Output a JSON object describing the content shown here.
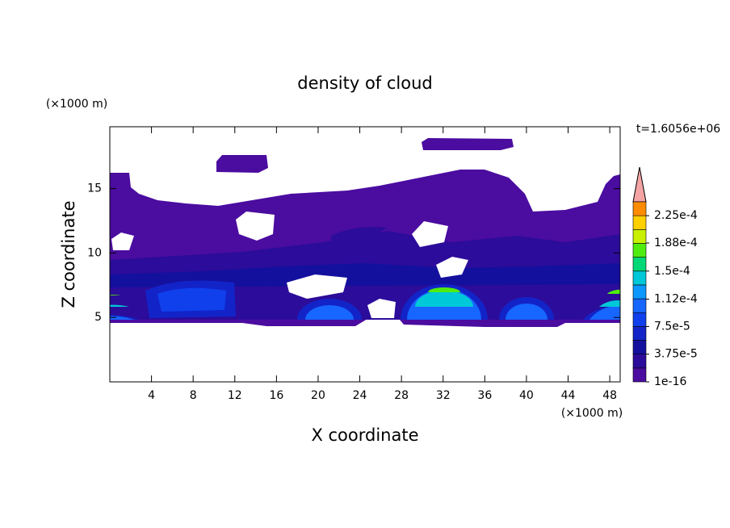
{
  "chart_data": {
    "type": "contour",
    "title": "density of cloud",
    "x_label": "X coordinate",
    "y_label": "Z coordinate",
    "x_unit": "(×1000 m)",
    "y_unit": "(×1000 m)",
    "annotation": "t=1.6056e+06",
    "xlim": [
      0,
      49
    ],
    "ylim": [
      0,
      19.8
    ],
    "xticks": [
      4,
      8,
      12,
      16,
      20,
      24,
      28,
      32,
      36,
      40,
      44,
      48
    ],
    "yticks": [
      5,
      10,
      15
    ],
    "levels": [
      1e-16,
      1.875e-05,
      3.75e-05,
      5.625e-05,
      7.5e-05,
      9.375e-05,
      0.0001125,
      0.00013125,
      0.00015,
      0.00016875,
      0.0001875,
      0.00020625,
      0.000225,
      0.00024375
    ],
    "colors": [
      "#4b0ca0",
      "#2c0c9a",
      "#14109e",
      "#1224c8",
      "#1040ec",
      "#1666ff",
      "#0c98ff",
      "#00c8d8",
      "#00d878",
      "#50ec10",
      "#c8f000",
      "#ffd000",
      "#ff8c00"
    ],
    "over_color": "#f4a4a4",
    "colorbar_ticks": [
      {
        "value": 1e-16,
        "label": "1e-16"
      },
      {
        "value": 3.75e-05,
        "label": "3.75e-5"
      },
      {
        "value": 7.5e-05,
        "label": "7.5e-5"
      },
      {
        "value": 0.000112,
        "label": "1.12e-4"
      },
      {
        "value": 0.00015,
        "label": "1.5e-4"
      },
      {
        "value": 0.000188,
        "label": "1.88e-4"
      },
      {
        "value": 0.000225,
        "label": "2.25e-4"
      }
    ]
  }
}
